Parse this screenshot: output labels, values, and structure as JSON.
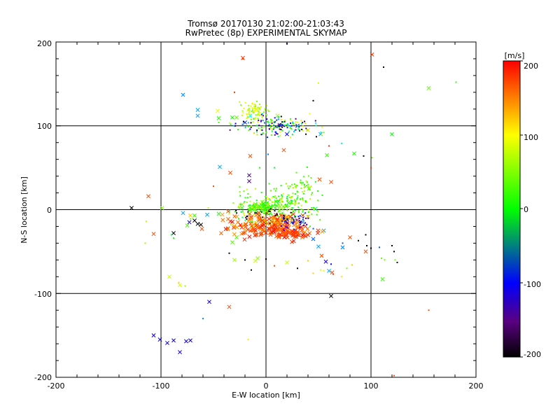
{
  "chart_data": {
    "type": "scatter",
    "title": "Tromsø 20170130 21:02:00-21:03:43",
    "subtitle": "RwPretec (8p) EXPERIMENTAL SKYMAP",
    "xlabel": "E-W location [km]",
    "ylabel": "N-S location [km]",
    "xlim": [
      -200,
      200
    ],
    "ylim": [
      -200,
      200
    ],
    "xticks": [
      "-200",
      "-100",
      "0",
      "100",
      "200"
    ],
    "yticks": [
      "-200",
      "-100",
      "0",
      "100",
      "200"
    ],
    "grid_lines": [
      -100,
      0,
      100
    ],
    "colorbar": {
      "label": "[m/s]",
      "range": [
        -200,
        200
      ],
      "ticks": [
        "200",
        "100",
        "0",
        "-100",
        "-200"
      ],
      "colormap": "black-purple-blue-cyan-green-yellow-red"
    },
    "series": [
      {
        "marker": "x",
        "points": [
          [
            -22,
            181,
            180
          ],
          [
            101,
            185,
            180
          ],
          [
            -79,
            137,
            -70
          ],
          [
            -65,
            119,
            -60
          ],
          [
            -65,
            112,
            -60
          ],
          [
            -45,
            109,
            10
          ],
          [
            -32,
            110,
            5
          ],
          [
            -46,
            118,
            90
          ],
          [
            -28,
            110,
            40
          ],
          [
            -10,
            119,
            100
          ],
          [
            -15,
            112,
            -40
          ],
          [
            -20,
            104,
            -90
          ],
          [
            11,
            112,
            60
          ],
          [
            13,
            101,
            -120
          ],
          [
            30,
            100,
            -110
          ],
          [
            40,
            95,
            120
          ],
          [
            20,
            90,
            -100
          ],
          [
            52,
            90,
            -60
          ],
          [
            58,
            65,
            20
          ],
          [
            84,
            67,
            10
          ],
          [
            -15,
            64,
            170
          ],
          [
            17,
            71,
            170
          ],
          [
            -44,
            51,
            -60
          ],
          [
            -16,
            41,
            -140
          ],
          [
            -16,
            34,
            -150
          ],
          [
            -34,
            44,
            170
          ],
          [
            41,
            25,
            30
          ],
          [
            51,
            36,
            170
          ],
          [
            62,
            33,
            170
          ],
          [
            -112,
            16,
            170
          ],
          [
            -99,
            2,
            50
          ],
          [
            -128,
            2,
            -200
          ],
          [
            -107,
            -29,
            170
          ],
          [
            -79,
            -4,
            -60
          ],
          [
            -72,
            -7,
            120
          ],
          [
            -68,
            -7,
            20
          ],
          [
            -73,
            -15,
            -120
          ],
          [
            -68,
            -13,
            -200
          ],
          [
            -65,
            -17,
            -200
          ],
          [
            -62,
            -18,
            -200
          ],
          [
            -75,
            -19,
            30
          ],
          [
            -88,
            -28,
            -200
          ],
          [
            -61,
            -23,
            170
          ],
          [
            -56,
            -6,
            -60
          ],
          [
            -45,
            -5,
            10
          ],
          [
            -36,
            -2,
            170
          ],
          [
            -28,
            -33,
            30
          ],
          [
            -32,
            -39,
            30
          ],
          [
            -8,
            -58,
            50
          ],
          [
            -10,
            -61,
            80
          ],
          [
            20,
            -63,
            80
          ],
          [
            50,
            -44,
            -60
          ],
          [
            53,
            -55,
            170
          ],
          [
            57,
            -62,
            -120
          ],
          [
            60,
            -73,
            -60
          ],
          [
            73,
            -45,
            -70
          ],
          [
            80,
            -33,
            170
          ],
          [
            95,
            -50,
            170
          ],
          [
            63,
            -75,
            170
          ],
          [
            111,
            -83,
            20
          ],
          [
            62,
            -103,
            -200
          ],
          [
            -35,
            -116,
            170
          ],
          [
            -54,
            -110,
            -110
          ],
          [
            -107,
            -150,
            -110
          ],
          [
            -101,
            -155,
            -110
          ],
          [
            -94,
            -159,
            -110
          ],
          [
            -88,
            -156,
            -110
          ],
          [
            -76,
            -157,
            -110
          ],
          [
            -72,
            -156,
            -110
          ],
          [
            -82,
            -170,
            -110
          ],
          [
            -82,
            -90,
            80
          ],
          [
            -92,
            -80,
            80
          ],
          [
            -30,
            -60,
            60
          ],
          [
            30,
            -30,
            -110
          ],
          [
            35,
            -15,
            -70
          ],
          [
            45,
            -35,
            -80
          ],
          [
            55,
            -25,
            -60
          ],
          [
            47,
            1,
            -10
          ],
          [
            120,
            90,
            0
          ],
          [
            155,
            145,
            40
          ]
        ]
      },
      {
        "marker": "dot",
        "points": [
          [
            112,
            170,
            -200
          ],
          [
            50,
            151,
            80
          ],
          [
            181,
            152,
            20
          ],
          [
            -22,
            180,
            180
          ],
          [
            45,
            130,
            -200
          ],
          [
            100,
            50,
            180
          ],
          [
            -30,
            140,
            180
          ],
          [
            -45,
            104,
            30
          ],
          [
            32,
            94,
            -150
          ],
          [
            38,
            90,
            -200
          ],
          [
            48,
            87,
            -200
          ],
          [
            55,
            92,
            40
          ],
          [
            60,
            76,
            180
          ],
          [
            72,
            79,
            -30
          ],
          [
            93,
            64,
            -200
          ],
          [
            101,
            62,
            40
          ],
          [
            -50,
            28,
            170
          ],
          [
            -25,
            27,
            40
          ],
          [
            -21,
            22,
            40
          ],
          [
            -10,
            25,
            70
          ],
          [
            3,
            31,
            20
          ],
          [
            10,
            25,
            30
          ],
          [
            23,
            28,
            40
          ],
          [
            33,
            35,
            20
          ],
          [
            8,
            50,
            -10
          ],
          [
            -6,
            50,
            10
          ],
          [
            2,
            66,
            -70
          ],
          [
            -12,
            7,
            100
          ],
          [
            -21,
            8,
            120
          ],
          [
            -35,
            -5,
            70
          ],
          [
            -55,
            2,
            70
          ],
          [
            -72,
            -11,
            40
          ],
          [
            -90,
            -30,
            -10
          ],
          [
            -114,
            -14,
            70
          ],
          [
            -115,
            -40,
            60
          ],
          [
            -88,
            -34,
            10
          ],
          [
            -83,
            -87,
            120
          ],
          [
            -77,
            -91,
            60
          ],
          [
            -60,
            -130,
            -70
          ],
          [
            -17,
            -155,
            110
          ],
          [
            -35,
            -52,
            -200
          ],
          [
            -20,
            -60,
            -200
          ],
          [
            -14,
            -72,
            -200
          ],
          [
            0,
            -59,
            -200
          ],
          [
            8,
            -67,
            170
          ],
          [
            30,
            -70,
            -200
          ],
          [
            40,
            -61,
            120
          ],
          [
            45,
            -76,
            120
          ],
          [
            52,
            -72,
            90
          ],
          [
            55,
            -73,
            90
          ],
          [
            62,
            -65,
            -100
          ],
          [
            64,
            -77,
            170
          ],
          [
            72,
            -80,
            110
          ],
          [
            77,
            -70,
            40
          ],
          [
            82,
            -66,
            120
          ],
          [
            95,
            -30,
            -200
          ],
          [
            96,
            -43,
            -200
          ],
          [
            108,
            -45,
            -80
          ],
          [
            120,
            -43,
            -200
          ],
          [
            122,
            -50,
            -200
          ],
          [
            110,
            -58,
            40
          ],
          [
            113,
            -60,
            40
          ],
          [
            123,
            -60,
            40
          ],
          [
            125,
            -63,
            -200
          ],
          [
            155,
            -120,
            170
          ],
          [
            122,
            -198,
            170
          ],
          [
            20,
            198,
            -110
          ],
          [
            73,
            -40,
            -80
          ],
          [
            88,
            -37,
            -200
          ],
          [
            100,
            -46,
            -200
          ]
        ]
      }
    ],
    "clusters": [
      {
        "cx": 10,
        "cy": 100,
        "rx": 30,
        "ry": 10,
        "n": 170,
        "vmin": -200,
        "vmax": 120,
        "marker": "dot",
        "seed": 11
      },
      {
        "cx": -12,
        "cy": 118,
        "rx": 10,
        "ry": 8,
        "n": 70,
        "vmin": 40,
        "vmax": 110,
        "marker": "dot",
        "seed": 12
      },
      {
        "cx": 8,
        "cy": 0,
        "rx": 30,
        "ry": 15,
        "n": 260,
        "vmin": -20,
        "vmax": 100,
        "marker": "dot",
        "seed": 13
      },
      {
        "cx": 30,
        "cy": 20,
        "rx": 15,
        "ry": 20,
        "n": 70,
        "vmin": 0,
        "vmax": 80,
        "marker": "dot",
        "seed": 14
      },
      {
        "cx": 5,
        "cy": -18,
        "rx": 38,
        "ry": 12,
        "n": 180,
        "vmin": 130,
        "vmax": 200,
        "marker": "x",
        "seed": 15
      },
      {
        "cx": 20,
        "cy": -28,
        "rx": 15,
        "ry": 6,
        "n": 60,
        "vmin": 150,
        "vmax": 200,
        "marker": "x",
        "seed": 16
      },
      {
        "cx": 30,
        "cy": -15,
        "rx": 12,
        "ry": 8,
        "n": 40,
        "vmin": -150,
        "vmax": -80,
        "marker": "dot",
        "seed": 17
      },
      {
        "cx": 0,
        "cy": -5,
        "rx": 25,
        "ry": 8,
        "n": 30,
        "vmin": -200,
        "vmax": -180,
        "marker": "dot",
        "seed": 18
      },
      {
        "cx": -2,
        "cy": 3,
        "rx": 15,
        "ry": 6,
        "n": 40,
        "vmin": 0,
        "vmax": 60,
        "marker": "x",
        "seed": 19
      }
    ]
  }
}
